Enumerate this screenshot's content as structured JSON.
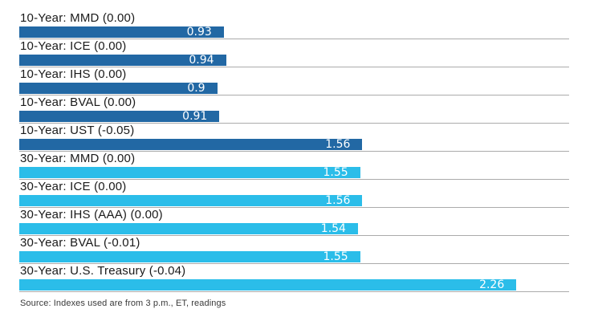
{
  "chart_data": {
    "type": "bar",
    "orientation": "horizontal",
    "title": "",
    "xlabel": "",
    "ylabel": "",
    "xlim": [
      0,
      2.5
    ],
    "grid": false,
    "legend": "none",
    "categories": [
      "10-Year: MMD (0.00)",
      "10-Year: ICE (0.00)",
      "10-Year: IHS (0.00)",
      "10-Year: BVAL (0.00)",
      "10-Year: UST (-0.05)",
      "30-Year: MMD (0.00)",
      "30-Year: ICE (0.00)",
      "30-Year: IHS (AAA) (0.00)",
      "30-Year: BVAL (-0.01)",
      "30-Year: U.S. Treasury (-0.04)"
    ],
    "values": [
      0.93,
      0.94,
      0.9,
      0.91,
      1.56,
      1.55,
      1.56,
      1.54,
      1.55,
      2.26
    ],
    "value_labels": [
      "0.93",
      "0.94",
      "0.9",
      "0.91",
      "1.56",
      "1.55",
      "1.56",
      "1.54",
      "1.55",
      "2.26"
    ],
    "groups": [
      "10-year",
      "10-year",
      "10-year",
      "10-year",
      "10-year",
      "30-year",
      "30-year",
      "30-year",
      "30-year",
      "30-year"
    ],
    "source": "Source: Indexes used are from 3 p.m., ET, readings"
  },
  "colors": {
    "10-year": "#2268A4",
    "30-year": "#2BBDE9",
    "separator": "#ABABAB",
    "label_text": "#1A1A1A",
    "value_text": "#FFFFFF",
    "background": "#FFFFFF"
  },
  "source_note": "Source: Indexes used are from 3 p.m., ET, readings"
}
